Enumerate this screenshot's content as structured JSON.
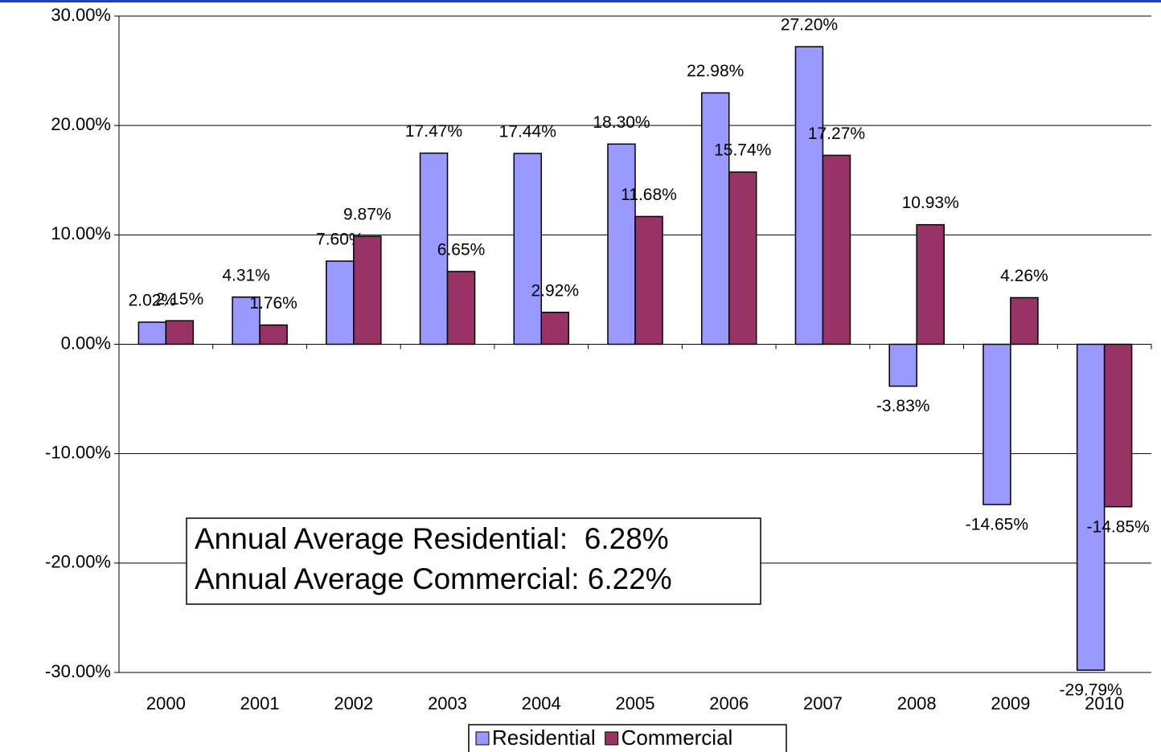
{
  "chart_data": {
    "type": "bar",
    "categories": [
      "2000",
      "2001",
      "2002",
      "2003",
      "2004",
      "2005",
      "2006",
      "2007",
      "2008",
      "2009",
      "2010"
    ],
    "series": [
      {
        "name": "Residential",
        "color": "#9999ff",
        "values": [
          2.02,
          4.31,
          7.6,
          17.47,
          17.44,
          18.3,
          22.98,
          27.2,
          -3.83,
          -14.65,
          -29.79
        ],
        "value_labels": [
          "2.02%",
          "4.31%",
          "7.60%",
          "17.47%",
          "17.44%",
          "18.30%",
          "22.98%",
          "27.20%",
          "-3.83%",
          "-14.65%",
          "-29.79%"
        ]
      },
      {
        "name": "Commercial",
        "color": "#993366",
        "values": [
          2.15,
          1.76,
          9.87,
          6.65,
          2.92,
          11.68,
          15.74,
          17.27,
          10.93,
          4.26,
          -14.85
        ],
        "value_labels": [
          "2.15%",
          "1.76%",
          "9.87%",
          "6.65%",
          "2.92%",
          "11.68%",
          "15.74%",
          "17.27%",
          "10.93%",
          "4.26%",
          "-14.85%"
        ]
      }
    ],
    "ylim": [
      -30,
      30
    ],
    "yticks": [
      {
        "value": -30,
        "label": "-30.00%"
      },
      {
        "value": -20,
        "label": "-20.00%"
      },
      {
        "value": -10,
        "label": "-10.00%"
      },
      {
        "value": 0,
        "label": "0.00%"
      },
      {
        "value": 10,
        "label": "10.00%"
      },
      {
        "value": 20,
        "label": "20.00%"
      },
      {
        "value": 30,
        "label": "30.00%"
      }
    ],
    "grid": true,
    "legend": "bottom",
    "annotations": [
      "Annual Average Residential:  6.28%",
      "Annual Average Commercial: 6.22%"
    ]
  }
}
